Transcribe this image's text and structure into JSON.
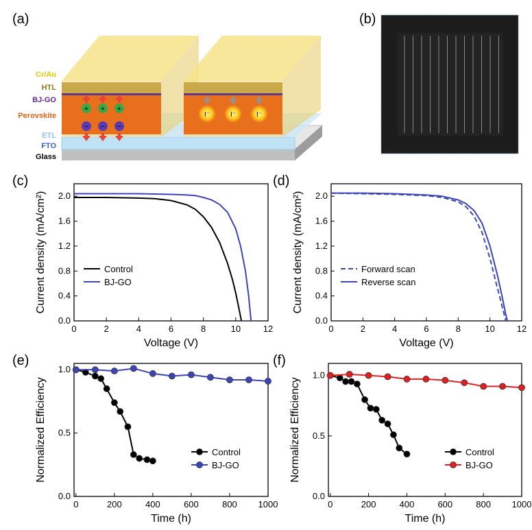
{
  "panels": {
    "a": {
      "label": "(a)",
      "layers": [
        "Cr/Au",
        "HTL",
        "BJ-GO",
        "Perovskite",
        "ETL",
        "FTO",
        "Glass"
      ],
      "ion_positive": "+",
      "ion_negative": "−",
      "iodide": "I⁻"
    },
    "b": {
      "label": "(b)"
    },
    "c": {
      "label": "(c)"
    },
    "d": {
      "label": "(d)"
    },
    "e": {
      "label": "(e)"
    },
    "f": {
      "label": "(f)"
    }
  },
  "colors": {
    "control": "#000000",
    "bjgo_jv": "#3b44b8",
    "bjgo_e": "#3b44b8",
    "bjgo_f": "#e02020",
    "perovskite": "#e8701c",
    "gold": "#f3dc6a",
    "module_bg": "#1c1c1c"
  },
  "chart_data": [
    {
      "id": "c",
      "type": "line",
      "xlabel": "Voltage (V)",
      "ylabel": "Current density (mA/cm²)",
      "xlim": [
        0,
        12
      ],
      "ylim": [
        0,
        2.2
      ],
      "xticks": [
        "0",
        "2",
        "4",
        "6",
        "8",
        "10",
        "12"
      ],
      "yticks": [
        "0.0",
        "0.4",
        "0.8",
        "1.2",
        "1.6",
        "2.0"
      ],
      "legend_position": "lower-left",
      "series": [
        {
          "name": "Control",
          "style": "solid",
          "x": [
            0,
            2,
            4,
            5,
            6,
            7,
            7.5,
            8,
            8.5,
            9,
            9.5,
            9.8,
            10.0,
            10.2,
            10.35
          ],
          "y": [
            1.98,
            1.98,
            1.97,
            1.96,
            1.93,
            1.86,
            1.79,
            1.67,
            1.5,
            1.26,
            0.92,
            0.66,
            0.45,
            0.2,
            0.0
          ]
        },
        {
          "name": "BJ-GO",
          "style": "solid",
          "x": [
            0,
            2,
            4,
            6,
            7,
            7.5,
            8,
            8.5,
            9,
            9.5,
            10,
            10.3,
            10.6,
            10.8,
            10.95
          ],
          "y": [
            2.04,
            2.04,
            2.04,
            2.03,
            2.02,
            2.01,
            1.98,
            1.94,
            1.87,
            1.74,
            1.48,
            1.2,
            0.8,
            0.4,
            0.0
          ]
        }
      ]
    },
    {
      "id": "d",
      "type": "line",
      "xlabel": "Voltage (V)",
      "ylabel": "Current density (mA/cm²)",
      "xlim": [
        0,
        12
      ],
      "ylim": [
        0,
        2.2
      ],
      "xticks": [
        "0",
        "2",
        "4",
        "6",
        "8",
        "10",
        "12"
      ],
      "yticks": [
        "0.0",
        "0.4",
        "0.8",
        "1.2",
        "1.6",
        "2.0"
      ],
      "legend_position": "lower-left",
      "series": [
        {
          "name": "Forward scan",
          "style": "dashed",
          "x": [
            0,
            2,
            4,
            6,
            7,
            8,
            8.5,
            9,
            9.5,
            10,
            10.4,
            10.7,
            10.9,
            11.0
          ],
          "y": [
            2.05,
            2.04,
            2.03,
            2.01,
            1.98,
            1.91,
            1.83,
            1.68,
            1.42,
            1.0,
            0.6,
            0.3,
            0.1,
            0.0
          ]
        },
        {
          "name": "Reverse scan",
          "style": "solid",
          "x": [
            0,
            2,
            4,
            6,
            7,
            8,
            8.5,
            9,
            9.5,
            10,
            10.5,
            10.8,
            11.0,
            11.1
          ],
          "y": [
            2.05,
            2.05,
            2.04,
            2.02,
            2.0,
            1.94,
            1.88,
            1.77,
            1.57,
            1.2,
            0.7,
            0.35,
            0.1,
            0.0
          ]
        }
      ]
    },
    {
      "id": "e",
      "type": "line",
      "xlabel": "Time (h)",
      "ylabel": "Normalized Efficiency",
      "xlim": [
        -10,
        1000
      ],
      "ylim": [
        0,
        1.05
      ],
      "xticks": [
        "0",
        "200",
        "400",
        "600",
        "800",
        "1000"
      ],
      "yticks": [
        "0.0",
        "0.5",
        "1.0"
      ],
      "legend_position": "lower-right",
      "series": [
        {
          "name": "Control",
          "markers": "circle",
          "x": [
            0,
            50,
            100,
            130,
            160,
            200,
            230,
            270,
            300,
            330,
            370,
            400
          ],
          "y": [
            1.0,
            0.98,
            0.95,
            0.93,
            0.85,
            0.74,
            0.67,
            0.55,
            0.33,
            0.3,
            0.29,
            0.28
          ]
        },
        {
          "name": "BJ-GO",
          "markers": "circle",
          "x": [
            0,
            100,
            200,
            300,
            400,
            500,
            600,
            700,
            800,
            900,
            1000
          ],
          "y": [
            1.0,
            1.0,
            0.99,
            1.01,
            0.97,
            0.95,
            0.96,
            0.94,
            0.92,
            0.92,
            0.91
          ]
        }
      ]
    },
    {
      "id": "f",
      "type": "line",
      "xlabel": "Time (h)",
      "ylabel": "Normalized Efficiency",
      "xlim": [
        -10,
        1000
      ],
      "ylim": [
        0,
        1.1
      ],
      "xticks": [
        "0",
        "200",
        "400",
        "600",
        "800",
        "1000"
      ],
      "yticks": [
        "0.0",
        "0.5",
        "1.0"
      ],
      "legend_position": "lower-right",
      "series": [
        {
          "name": "Control",
          "markers": "circle",
          "x": [
            0,
            50,
            80,
            110,
            140,
            180,
            210,
            240,
            270,
            300,
            330,
            360,
            400
          ],
          "y": [
            1.0,
            0.98,
            0.95,
            0.95,
            0.93,
            0.8,
            0.73,
            0.72,
            0.63,
            0.6,
            0.51,
            0.4,
            0.35
          ]
        },
        {
          "name": "BJ-GO",
          "markers": "circle",
          "x": [
            0,
            100,
            200,
            300,
            400,
            500,
            600,
            700,
            800,
            900,
            1000
          ],
          "y": [
            1.0,
            1.01,
            1.0,
            0.99,
            0.97,
            0.97,
            0.96,
            0.94,
            0.91,
            0.91,
            0.9
          ]
        }
      ]
    }
  ]
}
